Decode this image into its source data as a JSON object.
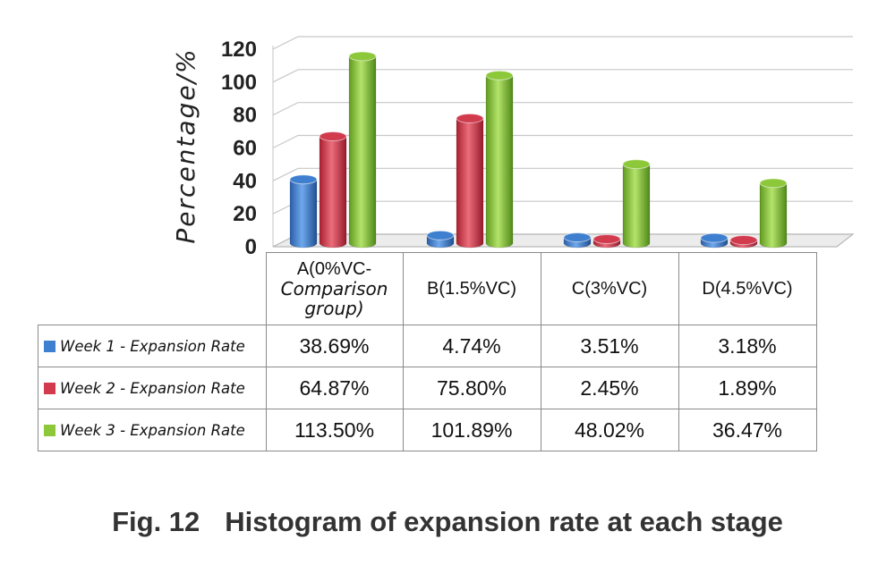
{
  "chart_data": {
    "type": "bar",
    "ylabel": "Percentage/%",
    "ylim": [
      0,
      120
    ],
    "yticks": [
      0,
      20,
      40,
      60,
      80,
      100,
      120
    ],
    "categories": [
      "A(0%VC-Comparison group)",
      "B(1.5%VC)",
      "C(3%VC)",
      "D(4.5%VC)"
    ],
    "category_lines": [
      [
        "A(0%VC-",
        "Comparison",
        "group)"
      ],
      [
        "B(1.5%VC)"
      ],
      [
        "C(3%VC)"
      ],
      [
        "D(4.5%VC)"
      ]
    ],
    "series": [
      {
        "name": "Week 1 - Expansion Rate",
        "values": [
          38.69,
          4.74,
          3.51,
          3.18
        ],
        "labels": [
          "38.69%",
          "4.74%",
          "3.51%",
          "3.18%"
        ],
        "color": "#3f7fd0"
      },
      {
        "name": "Week 2 - Expansion Rate",
        "values": [
          64.87,
          75.8,
          2.45,
          1.89
        ],
        "labels": [
          "64.87%",
          "75.80%",
          "2.45%",
          "1.89%"
        ],
        "color": "#d23a4e"
      },
      {
        "name": "Week 3 - Expansion Rate",
        "values": [
          113.5,
          101.89,
          48.02,
          36.47
        ],
        "labels": [
          "113.50%",
          "101.89%",
          "48.02%",
          "36.47%"
        ],
        "color": "#8cc83a"
      }
    ],
    "grid": true,
    "legend": "data-table"
  },
  "caption": {
    "label": "Fig. 12",
    "text": "Histogram of expansion rate at each stage"
  }
}
